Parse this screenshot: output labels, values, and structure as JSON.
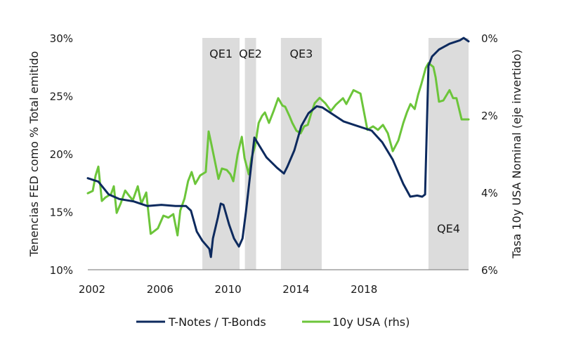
{
  "chart_data": {
    "type": "line",
    "title": "",
    "xlabel": "",
    "ylabel": "Tenencias FED como % Total emitido",
    "y2label": "Tasa 10y USA Nominal (eje invertido)",
    "xlim": [
      2001.75,
      2024.15
    ],
    "ylim": [
      10,
      30
    ],
    "y2lim": [
      0,
      6
    ],
    "y2_inverted": true,
    "grid": false,
    "x_ticks": [
      2002,
      2006,
      2010,
      2014,
      2018
    ],
    "x_tick_labels": [
      "2002",
      "2006",
      "2010",
      "2014",
      "2018"
    ],
    "y_ticks": [
      10,
      15,
      20,
      25,
      30
    ],
    "y_tick_labels": [
      "10%",
      "15%",
      "20%",
      "25%",
      "30%"
    ],
    "y2_ticks": [
      0,
      2,
      4,
      6
    ],
    "y2_tick_labels": [
      "0%",
      "2%",
      "4%",
      "6%"
    ],
    "shaded_regions": [
      {
        "label": "QE1",
        "start": 2008.49,
        "end": 2010.68,
        "label_pos": "top"
      },
      {
        "label": "QE2",
        "start": 2010.99,
        "end": 2011.65,
        "label_pos": "top"
      },
      {
        "label": "QE3",
        "start": 2013.11,
        "end": 2015.51,
        "label_pos": "top"
      },
      {
        "label": "QE4",
        "start": 2021.79,
        "end": 2024.15,
        "label_pos": "bottom"
      }
    ],
    "legend": {
      "position": "bottom-center"
    },
    "series": [
      {
        "name": "T-Notes / T-Bonds",
        "axis": "left",
        "color": "#0d2a5e",
        "x": [
          2001.75,
          2002.37,
          2002.98,
          2003.6,
          2004.43,
          2005.26,
          2006.08,
          2006.91,
          2007.53,
          2007.82,
          2008.16,
          2008.49,
          2008.9,
          2008.99,
          2009.11,
          2009.4,
          2009.57,
          2009.73,
          2010.06,
          2010.35,
          2010.64,
          2010.85,
          2011.06,
          2011.3,
          2011.55,
          2011.76,
          2012.26,
          2012.88,
          2013.29,
          2013.49,
          2013.9,
          2014.31,
          2014.73,
          2015.22,
          2015.55,
          2016.17,
          2016.79,
          2017.62,
          2018.45,
          2019.07,
          2019.69,
          2020.31,
          2020.72,
          2021.13,
          2021.42,
          2021.59,
          2021.79,
          2022.0,
          2022.41,
          2023.03,
          2023.65,
          2023.86,
          2024.15
        ],
        "values": [
          17.9,
          17.6,
          16.5,
          16.1,
          15.9,
          15.5,
          15.6,
          15.5,
          15.5,
          15.1,
          13.3,
          12.5,
          11.8,
          11.1,
          12.7,
          14.5,
          15.7,
          15.6,
          13.9,
          12.7,
          12.0,
          12.7,
          15.1,
          18.2,
          21.4,
          20.9,
          19.7,
          18.8,
          18.3,
          18.9,
          20.3,
          22.4,
          23.5,
          24.1,
          24.0,
          23.4,
          22.8,
          22.4,
          22.0,
          21.0,
          19.5,
          17.4,
          16.3,
          16.4,
          16.3,
          16.5,
          27.6,
          28.4,
          29.0,
          29.5,
          29.8,
          30.0,
          29.7
        ]
      },
      {
        "name": "10y USA (rhs)",
        "axis": "right",
        "color": "#6cc53a",
        "x": [
          2001.75,
          2002.04,
          2002.21,
          2002.37,
          2002.58,
          2002.79,
          2003.12,
          2003.28,
          2003.45,
          2003.7,
          2003.95,
          2004.19,
          2004.4,
          2004.69,
          2004.9,
          2005.19,
          2005.45,
          2005.87,
          2006.2,
          2006.49,
          2006.78,
          2007.03,
          2007.19,
          2007.44,
          2007.65,
          2007.86,
          2008.07,
          2008.36,
          2008.69,
          2008.86,
          2009.02,
          2009.23,
          2009.44,
          2009.64,
          2009.93,
          2010.14,
          2010.31,
          2010.56,
          2010.81,
          2010.97,
          2011.22,
          2011.38,
          2011.59,
          2011.8,
          2012.0,
          2012.17,
          2012.41,
          2012.7,
          2012.95,
          2013.2,
          2013.36,
          2013.61,
          2013.78,
          2014.02,
          2014.27,
          2014.48,
          2014.69,
          2014.89,
          2015.1,
          2015.39,
          2015.72,
          2016.05,
          2016.34,
          2016.76,
          2016.96,
          2017.38,
          2017.79,
          2018.2,
          2018.53,
          2018.82,
          2019.11,
          2019.4,
          2019.69,
          2020.02,
          2020.31,
          2020.52,
          2020.73,
          2020.98,
          2021.18,
          2021.38,
          2021.63,
          2021.79,
          2022.08,
          2022.21,
          2022.41,
          2022.66,
          2023.03,
          2023.24,
          2023.44,
          2023.74,
          2024.15
        ],
        "values": [
          4.02,
          3.96,
          3.56,
          3.33,
          4.22,
          4.13,
          4.04,
          3.84,
          4.53,
          4.27,
          3.95,
          4.09,
          4.2,
          3.84,
          4.29,
          4.0,
          5.07,
          4.93,
          4.6,
          4.65,
          4.56,
          5.11,
          4.47,
          4.16,
          3.71,
          3.47,
          3.78,
          3.56,
          3.47,
          2.42,
          2.75,
          3.2,
          3.65,
          3.38,
          3.42,
          3.53,
          3.71,
          3.02,
          2.56,
          3.11,
          3.53,
          3.11,
          2.8,
          2.2,
          2.02,
          1.93,
          2.2,
          1.87,
          1.56,
          1.75,
          1.78,
          2.02,
          2.2,
          2.4,
          2.47,
          2.29,
          2.25,
          1.96,
          1.69,
          1.55,
          1.69,
          1.89,
          1.73,
          1.56,
          1.71,
          1.35,
          1.44,
          2.38,
          2.29,
          2.38,
          2.25,
          2.47,
          2.93,
          2.65,
          2.2,
          1.93,
          1.71,
          1.84,
          1.47,
          1.18,
          0.78,
          0.65,
          0.75,
          1.02,
          1.65,
          1.62,
          1.35,
          1.56,
          1.56,
          2.11,
          2.11
        ]
      }
    ]
  }
}
